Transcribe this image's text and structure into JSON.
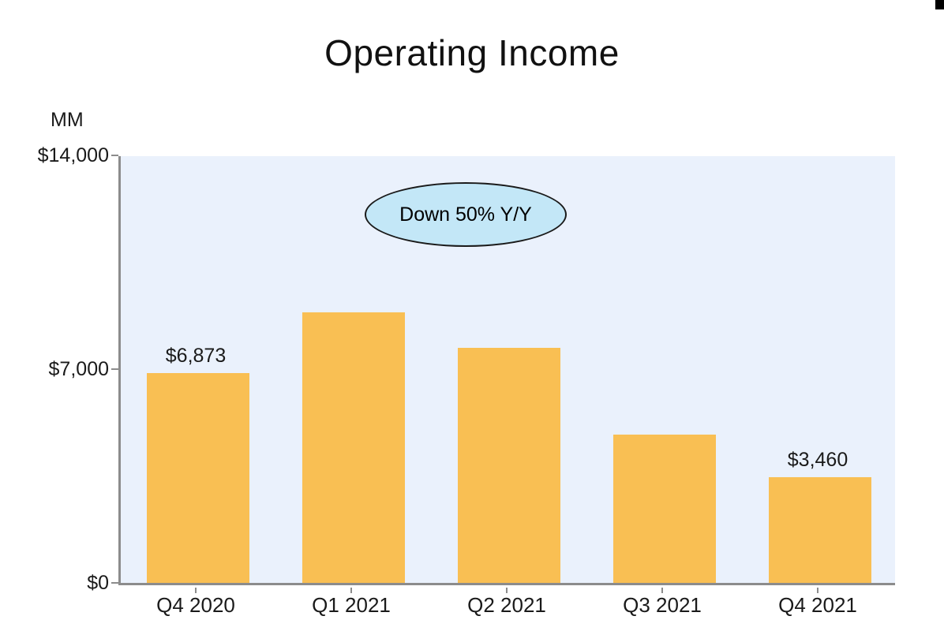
{
  "page": {
    "background": "#ffffff",
    "corner_mark_color": "#000000"
  },
  "chart_data": {
    "type": "bar",
    "title": "Operating Income",
    "unit_label": "MM",
    "categories": [
      "Q4 2020",
      "Q1 2021",
      "Q2 2021",
      "Q3 2021",
      "Q4 2021"
    ],
    "values": [
      6873,
      8865,
      7702,
      4852,
      3460
    ],
    "value_labels_shown": [
      "$6,873",
      "",
      "",
      "",
      "$3,460"
    ],
    "ylim": [
      0,
      14000
    ],
    "yticks": [
      {
        "value": 0,
        "label": "$0"
      },
      {
        "value": 7000,
        "label": "$7,000"
      },
      {
        "value": 14000,
        "label": "$14,000"
      }
    ],
    "xlabel": "",
    "ylabel": "MM",
    "grid": false,
    "legend": "none",
    "bar_color": "#f9bf53",
    "plot_bg": "#eaf1fc",
    "axis_color": "#8c8c8c",
    "annotation": {
      "shape": "ellipse",
      "text": "Down 50% Y/Y",
      "fill": "#c3e7f7",
      "border_color": "#1a1a1a"
    }
  }
}
